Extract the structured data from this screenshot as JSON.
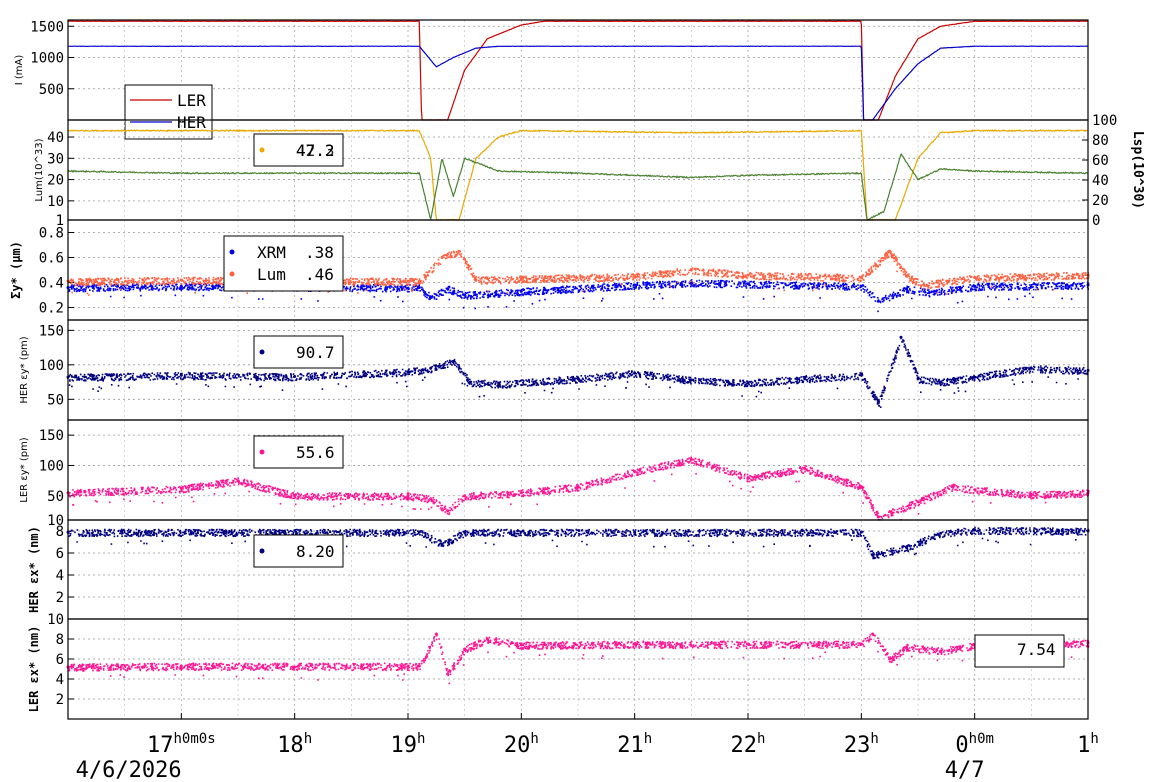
{
  "chart_data": [
    {
      "type": "line",
      "ylabel": "I (mA)",
      "yticks": [
        500,
        1000,
        1500
      ],
      "ylim": [
        0,
        1600
      ],
      "legend": {
        "placement": "left",
        "entries": [
          "LER",
          "HER"
        ]
      },
      "series": [
        {
          "name": "LER",
          "color": "#cc0000",
          "points": [
            [
              16.0,
              1580
            ],
            [
              19.1,
              1580
            ],
            [
              19.12,
              0
            ],
            [
              19.35,
              0
            ],
            [
              19.5,
              800
            ],
            [
              19.7,
              1300
            ],
            [
              20.0,
              1520
            ],
            [
              20.2,
              1580
            ],
            [
              23.0,
              1580
            ],
            [
              23.02,
              0
            ],
            [
              23.15,
              0
            ],
            [
              23.3,
              700
            ],
            [
              23.5,
              1300
            ],
            [
              23.7,
              1500
            ],
            [
              24.0,
              1580
            ],
            [
              25.0,
              1580
            ]
          ]
        },
        {
          "name": "HER",
          "color": "#0000cc",
          "points": [
            [
              16.0,
              1180
            ],
            [
              19.1,
              1180
            ],
            [
              19.25,
              850
            ],
            [
              19.4,
              1000
            ],
            [
              19.6,
              1150
            ],
            [
              19.8,
              1180
            ],
            [
              23.0,
              1180
            ],
            [
              23.02,
              0
            ],
            [
              23.1,
              0
            ],
            [
              23.3,
              500
            ],
            [
              23.5,
              900
            ],
            [
              23.7,
              1150
            ],
            [
              24.0,
              1180
            ],
            [
              25.0,
              1180
            ]
          ]
        }
      ]
    },
    {
      "type": "line",
      "ylabel": "Lum(10^33)",
      "yticks": [
        1,
        10,
        20,
        30,
        40
      ],
      "ylim": [
        1,
        48
      ],
      "y2label": "Lsp(10^30)",
      "y2ticks": [
        0,
        20,
        40,
        60,
        80,
        100
      ],
      "legend": {
        "placement": "top-left",
        "value_a": "47.2",
        "value_b": "42.3"
      },
      "series": [
        {
          "color": "#e8a800",
          "points": [
            [
              16.0,
              43
            ],
            [
              19.1,
              43
            ],
            [
              19.2,
              30
            ],
            [
              19.25,
              1
            ],
            [
              19.45,
              1
            ],
            [
              19.6,
              30
            ],
            [
              19.8,
              40
            ],
            [
              20.0,
              43
            ],
            [
              21.5,
              42
            ],
            [
              23.0,
              43
            ],
            [
              23.05,
              1
            ],
            [
              23.3,
              1
            ],
            [
              23.5,
              30
            ],
            [
              23.7,
              42
            ],
            [
              24.0,
              43
            ],
            [
              25.0,
              43
            ]
          ]
        },
        {
          "color": "#4a8030",
          "points": [
            [
              16.0,
              24
            ],
            [
              17.0,
              23
            ],
            [
              19.1,
              23
            ],
            [
              19.2,
              1
            ],
            [
              19.3,
              30
            ],
            [
              19.4,
              12
            ],
            [
              19.5,
              30
            ],
            [
              19.8,
              24
            ],
            [
              20.5,
              23
            ],
            [
              21.5,
              21
            ],
            [
              22.0,
              22
            ],
            [
              23.0,
              23
            ],
            [
              23.05,
              1
            ],
            [
              23.2,
              5
            ],
            [
              23.35,
              32
            ],
            [
              23.5,
              20
            ],
            [
              23.7,
              25
            ],
            [
              24.0,
              24
            ],
            [
              25.0,
              23
            ]
          ]
        }
      ]
    },
    {
      "type": "scatter",
      "ylabel": "Σy* (μm)",
      "yticks": [
        0.2,
        0.4,
        0.6,
        0.8
      ],
      "ylim": [
        0.1,
        0.9
      ],
      "legend": {
        "placement": "top-left",
        "entries": [
          {
            "name": "XRM",
            "value": ".38"
          },
          {
            "name": "Lum",
            "value": ".46"
          }
        ]
      },
      "series": [
        {
          "name": "XRM",
          "color": "#0000ee",
          "points": [
            [
              16.0,
              0.36
            ],
            [
              17.0,
              0.37
            ],
            [
              19.1,
              0.36
            ],
            [
              19.2,
              0.28
            ],
            [
              19.35,
              0.35
            ],
            [
              19.5,
              0.3
            ],
            [
              20.0,
              0.33
            ],
            [
              21.0,
              0.38
            ],
            [
              21.5,
              0.4
            ],
            [
              22.0,
              0.39
            ],
            [
              23.0,
              0.37
            ],
            [
              23.15,
              0.25
            ],
            [
              23.4,
              0.35
            ],
            [
              23.6,
              0.32
            ],
            [
              24.0,
              0.37
            ],
            [
              25.0,
              0.38
            ]
          ]
        },
        {
          "name": "Lum",
          "color": "#ff6040",
          "points": [
            [
              16.0,
              0.41
            ],
            [
              17.0,
              0.42
            ],
            [
              19.1,
              0.41
            ],
            [
              19.3,
              0.6
            ],
            [
              19.45,
              0.65
            ],
            [
              19.6,
              0.42
            ],
            [
              20.0,
              0.43
            ],
            [
              21.0,
              0.45
            ],
            [
              21.5,
              0.5
            ],
            [
              22.0,
              0.46
            ],
            [
              23.0,
              0.44
            ],
            [
              23.25,
              0.65
            ],
            [
              23.4,
              0.45
            ],
            [
              23.55,
              0.38
            ],
            [
              24.0,
              0.44
            ],
            [
              25.0,
              0.46
            ]
          ]
        }
      ]
    },
    {
      "type": "scatter",
      "ylabel": "HER εy* (pm)",
      "yticks": [
        50,
        100,
        150
      ],
      "ylim": [
        20,
        165
      ],
      "legend": {
        "placement": "top-left",
        "value": "90.7"
      },
      "series": [
        {
          "color": "#000080",
          "points": [
            [
              16.0,
              82
            ],
            [
              17.0,
              85
            ],
            [
              18.0,
              83
            ],
            [
              19.0,
              90
            ],
            [
              19.2,
              95
            ],
            [
              19.4,
              105
            ],
            [
              19.55,
              75
            ],
            [
              19.8,
              72
            ],
            [
              20.5,
              80
            ],
            [
              21.0,
              88
            ],
            [
              21.5,
              78
            ],
            [
              22.0,
              74
            ],
            [
              22.5,
              80
            ],
            [
              23.0,
              85
            ],
            [
              23.15,
              45
            ],
            [
              23.35,
              140
            ],
            [
              23.5,
              80
            ],
            [
              23.7,
              75
            ],
            [
              24.0,
              82
            ],
            [
              24.5,
              95
            ],
            [
              25.0,
              92
            ]
          ]
        }
      ]
    },
    {
      "type": "scatter",
      "ylabel": "LER εy* (pm)",
      "yticks": [
        10,
        50,
        100,
        150
      ],
      "ylim": [
        10,
        175
      ],
      "legend": {
        "placement": "top-left",
        "value": "55.6"
      },
      "series": [
        {
          "color": "#ff1493",
          "points": [
            [
              16.0,
              55
            ],
            [
              17.0,
              62
            ],
            [
              17.5,
              75
            ],
            [
              18.0,
              50
            ],
            [
              19.0,
              50
            ],
            [
              19.2,
              45
            ],
            [
              19.35,
              25
            ],
            [
              19.5,
              50
            ],
            [
              20.0,
              55
            ],
            [
              20.5,
              65
            ],
            [
              21.0,
              90
            ],
            [
              21.5,
              110
            ],
            [
              22.0,
              80
            ],
            [
              22.5,
              95
            ],
            [
              23.0,
              65
            ],
            [
              23.15,
              15
            ],
            [
              23.5,
              40
            ],
            [
              23.8,
              65
            ],
            [
              24.0,
              60
            ],
            [
              24.5,
              52
            ],
            [
              25.0,
              55
            ]
          ]
        }
      ]
    },
    {
      "type": "scatter",
      "ylabel": "HER εx* (nm)",
      "yticks": [
        2,
        4,
        6,
        8
      ],
      "ylim": [
        0,
        9
      ],
      "legend": {
        "placement": "top-left",
        "value": "8.20"
      },
      "series": [
        {
          "color": "#000080",
          "points": [
            [
              16.0,
              7.9
            ],
            [
              19.1,
              7.9
            ],
            [
              19.3,
              6.8
            ],
            [
              19.5,
              7.9
            ],
            [
              21.0,
              7.9
            ],
            [
              23.0,
              7.9
            ],
            [
              23.1,
              5.8
            ],
            [
              23.4,
              6.5
            ],
            [
              23.7,
              7.8
            ],
            [
              24.0,
              8.1
            ],
            [
              25.0,
              8.0
            ]
          ]
        }
      ]
    },
    {
      "type": "scatter",
      "ylabel": "LER εx* (nm)",
      "yticks": [
        2,
        4,
        6,
        8,
        10
      ],
      "ylim": [
        0,
        10
      ],
      "legend": {
        "placement": "top-right",
        "value": "7.54"
      },
      "series": [
        {
          "color": "#ff1493",
          "points": [
            [
              16.0,
              5.2
            ],
            [
              17.0,
              5.3
            ],
            [
              19.1,
              5.3
            ],
            [
              19.25,
              8.5
            ],
            [
              19.35,
              4.5
            ],
            [
              19.5,
              7.0
            ],
            [
              19.7,
              8.0
            ],
            [
              20.0,
              7.4
            ],
            [
              21.0,
              7.5
            ],
            [
              22.0,
              7.5
            ],
            [
              23.0,
              7.5
            ],
            [
              23.1,
              8.5
            ],
            [
              23.25,
              6.0
            ],
            [
              23.4,
              7.2
            ],
            [
              23.7,
              6.8
            ],
            [
              24.0,
              7.4
            ],
            [
              25.0,
              7.6
            ]
          ]
        }
      ]
    }
  ],
  "x_axis": {
    "range_hours": [
      16.0,
      25.0
    ],
    "ticks": [
      {
        "h": 17,
        "label": "17",
        "sup": "h0m0s"
      },
      {
        "h": 18,
        "label": "18",
        "sup": "h"
      },
      {
        "h": 19,
        "label": "19",
        "sup": "h"
      },
      {
        "h": 20,
        "label": "20",
        "sup": "h"
      },
      {
        "h": 21,
        "label": "21",
        "sup": "h"
      },
      {
        "h": 22,
        "label": "22",
        "sup": "h"
      },
      {
        "h": 23,
        "label": "23",
        "sup": "h"
      },
      {
        "h": 24,
        "label": "0",
        "sup": "h0m"
      },
      {
        "h": 25,
        "label": "1",
        "sup": "h"
      }
    ],
    "dates": [
      {
        "h": 16.5,
        "label": "4/6/2026"
      },
      {
        "h": 24.0,
        "label": "4/7"
      }
    ]
  }
}
